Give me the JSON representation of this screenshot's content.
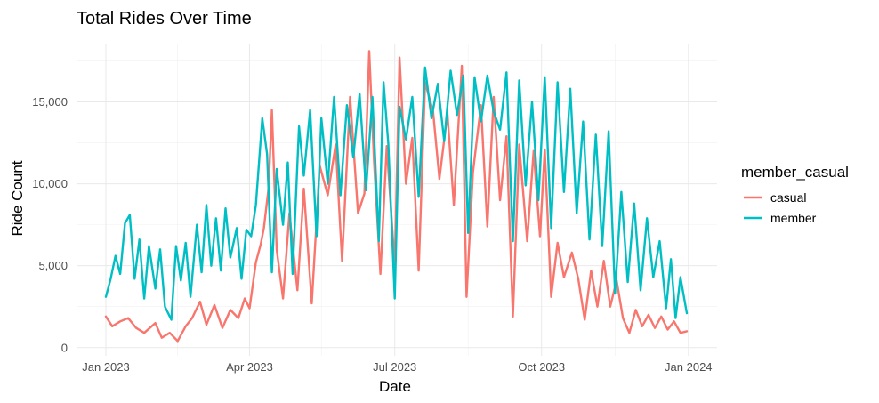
{
  "chart_data": {
    "type": "line",
    "title": "Total Rides Over Time",
    "xlabel": "Date",
    "ylabel": "Ride Count",
    "x_range": [
      "2023-01-01",
      "2023-12-31"
    ],
    "ylim": [
      -500,
      18500
    ],
    "grid": true,
    "x_ticks": [
      {
        "date": "2023-01-01",
        "label": "Jan 2023"
      },
      {
        "date": "2023-04-01",
        "label": "Apr 2023"
      },
      {
        "date": "2023-07-01",
        "label": "Jul 2023"
      },
      {
        "date": "2023-10-01",
        "label": "Oct 2023"
      },
      {
        "date": "2024-01-01",
        "label": "Jan 2024"
      }
    ],
    "y_ticks": [
      {
        "value": 0,
        "label": "0"
      },
      {
        "value": 5000,
        "label": "5,000"
      },
      {
        "value": 10000,
        "label": "10,000"
      },
      {
        "value": 15000,
        "label": "15,000"
      }
    ],
    "legend": {
      "title": "member_casual",
      "placement": "right"
    },
    "series": [
      {
        "name": "casual",
        "color": "#F8766D",
        "points": [
          [
            "2023-01-01",
            1900
          ],
          [
            "2023-01-05",
            1300
          ],
          [
            "2023-01-10",
            1600
          ],
          [
            "2023-01-15",
            1800
          ],
          [
            "2023-01-20",
            1200
          ],
          [
            "2023-01-25",
            900
          ],
          [
            "2023-02-01",
            1500
          ],
          [
            "2023-02-05",
            600
          ],
          [
            "2023-02-10",
            900
          ],
          [
            "2023-02-15",
            400
          ],
          [
            "2023-02-20",
            1300
          ],
          [
            "2023-02-24",
            1800
          ],
          [
            "2023-03-01",
            2800
          ],
          [
            "2023-03-05",
            1400
          ],
          [
            "2023-03-10",
            2600
          ],
          [
            "2023-03-15",
            1200
          ],
          [
            "2023-03-20",
            2300
          ],
          [
            "2023-03-25",
            1800
          ],
          [
            "2023-03-29",
            3000
          ],
          [
            "2023-04-01",
            2400
          ],
          [
            "2023-04-05",
            5200
          ],
          [
            "2023-04-08",
            6300
          ],
          [
            "2023-04-10",
            7300
          ],
          [
            "2023-04-13",
            9800
          ],
          [
            "2023-04-15",
            14500
          ],
          [
            "2023-04-18",
            6000
          ],
          [
            "2023-04-22",
            3000
          ],
          [
            "2023-04-26",
            8200
          ],
          [
            "2023-05-01",
            3500
          ],
          [
            "2023-05-05",
            9700
          ],
          [
            "2023-05-10",
            2700
          ],
          [
            "2023-05-15",
            11100
          ],
          [
            "2023-05-20",
            9300
          ],
          [
            "2023-05-25",
            12400
          ],
          [
            "2023-05-29",
            5300
          ],
          [
            "2023-06-03",
            15300
          ],
          [
            "2023-06-08",
            8200
          ],
          [
            "2023-06-12",
            9400
          ],
          [
            "2023-06-15",
            18100
          ],
          [
            "2023-06-18",
            11400
          ],
          [
            "2023-06-22",
            4500
          ],
          [
            "2023-06-26",
            12300
          ],
          [
            "2023-07-01",
            5000
          ],
          [
            "2023-07-04",
            17700
          ],
          [
            "2023-07-08",
            10000
          ],
          [
            "2023-07-12",
            12800
          ],
          [
            "2023-07-16",
            4700
          ],
          [
            "2023-07-20",
            16200
          ],
          [
            "2023-07-25",
            14400
          ],
          [
            "2023-07-29",
            10300
          ],
          [
            "2023-08-03",
            14300
          ],
          [
            "2023-08-07",
            8700
          ],
          [
            "2023-08-12",
            17200
          ],
          [
            "2023-08-15",
            3100
          ],
          [
            "2023-08-19",
            10700
          ],
          [
            "2023-08-24",
            14800
          ],
          [
            "2023-08-28",
            7400
          ],
          [
            "2023-09-01",
            15300
          ],
          [
            "2023-09-05",
            9000
          ],
          [
            "2023-09-09",
            12900
          ],
          [
            "2023-09-13",
            1900
          ],
          [
            "2023-09-17",
            12400
          ],
          [
            "2023-09-22",
            6500
          ],
          [
            "2023-09-26",
            12000
          ],
          [
            "2023-09-30",
            6800
          ],
          [
            "2023-10-03",
            12100
          ],
          [
            "2023-10-07",
            3100
          ],
          [
            "2023-10-11",
            6400
          ],
          [
            "2023-10-15",
            4300
          ],
          [
            "2023-10-20",
            5800
          ],
          [
            "2023-10-24",
            4200
          ],
          [
            "2023-10-28",
            1700
          ],
          [
            "2023-11-01",
            4700
          ],
          [
            "2023-11-05",
            2500
          ],
          [
            "2023-11-09",
            5300
          ],
          [
            "2023-11-13",
            2500
          ],
          [
            "2023-11-17",
            4100
          ],
          [
            "2023-11-21",
            1800
          ],
          [
            "2023-11-25",
            900
          ],
          [
            "2023-11-29",
            2300
          ],
          [
            "2023-12-03",
            1300
          ],
          [
            "2023-12-07",
            2000
          ],
          [
            "2023-12-11",
            1200
          ],
          [
            "2023-12-15",
            1900
          ],
          [
            "2023-12-19",
            1100
          ],
          [
            "2023-12-23",
            1600
          ],
          [
            "2023-12-27",
            900
          ],
          [
            "2023-12-31",
            1000
          ]
        ]
      },
      {
        "name": "member",
        "color": "#00BFC4",
        "points": [
          [
            "2023-01-01",
            3100
          ],
          [
            "2023-01-04",
            4200
          ],
          [
            "2023-01-07",
            5600
          ],
          [
            "2023-01-10",
            4500
          ],
          [
            "2023-01-13",
            7600
          ],
          [
            "2023-01-16",
            8100
          ],
          [
            "2023-01-19",
            4200
          ],
          [
            "2023-01-22",
            6600
          ],
          [
            "2023-01-25",
            3000
          ],
          [
            "2023-01-28",
            6200
          ],
          [
            "2023-02-01",
            3600
          ],
          [
            "2023-02-04",
            6000
          ],
          [
            "2023-02-07",
            2500
          ],
          [
            "2023-02-11",
            1700
          ],
          [
            "2023-02-14",
            6200
          ],
          [
            "2023-02-17",
            4100
          ],
          [
            "2023-02-20",
            6400
          ],
          [
            "2023-02-23",
            3100
          ],
          [
            "2023-02-27",
            7500
          ],
          [
            "2023-03-02",
            4600
          ],
          [
            "2023-03-05",
            8700
          ],
          [
            "2023-03-08",
            5000
          ],
          [
            "2023-03-11",
            7900
          ],
          [
            "2023-03-14",
            4700
          ],
          [
            "2023-03-17",
            8500
          ],
          [
            "2023-03-20",
            5500
          ],
          [
            "2023-03-24",
            7300
          ],
          [
            "2023-03-27",
            4200
          ],
          [
            "2023-03-30",
            7200
          ],
          [
            "2023-04-02",
            6800
          ],
          [
            "2023-04-05",
            8700
          ],
          [
            "2023-04-09",
            14000
          ],
          [
            "2023-04-12",
            11800
          ],
          [
            "2023-04-15",
            4600
          ],
          [
            "2023-04-18",
            10900
          ],
          [
            "2023-04-22",
            7500
          ],
          [
            "2023-04-25",
            11300
          ],
          [
            "2023-04-28",
            4500
          ],
          [
            "2023-05-02",
            13500
          ],
          [
            "2023-05-05",
            10500
          ],
          [
            "2023-05-09",
            14500
          ],
          [
            "2023-05-13",
            6800
          ],
          [
            "2023-05-16",
            14000
          ],
          [
            "2023-05-20",
            10000
          ],
          [
            "2023-05-24",
            15300
          ],
          [
            "2023-05-28",
            9300
          ],
          [
            "2023-06-01",
            14800
          ],
          [
            "2023-06-05",
            11600
          ],
          [
            "2023-06-09",
            15500
          ],
          [
            "2023-06-13",
            9600
          ],
          [
            "2023-06-17",
            15300
          ],
          [
            "2023-06-21",
            6500
          ],
          [
            "2023-06-24",
            16200
          ],
          [
            "2023-06-27",
            12400
          ],
          [
            "2023-07-01",
            3000
          ],
          [
            "2023-07-04",
            14700
          ],
          [
            "2023-07-08",
            12700
          ],
          [
            "2023-07-12",
            15300
          ],
          [
            "2023-07-16",
            9200
          ],
          [
            "2023-07-20",
            17100
          ],
          [
            "2023-07-24",
            14000
          ],
          [
            "2023-07-28",
            16100
          ],
          [
            "2023-08-01",
            12600
          ],
          [
            "2023-08-05",
            16900
          ],
          [
            "2023-08-09",
            14200
          ],
          [
            "2023-08-13",
            16600
          ],
          [
            "2023-08-16",
            7000
          ],
          [
            "2023-08-20",
            16500
          ],
          [
            "2023-08-24",
            13800
          ],
          [
            "2023-08-28",
            16600
          ],
          [
            "2023-09-01",
            14400
          ],
          [
            "2023-09-05",
            13300
          ],
          [
            "2023-09-09",
            16800
          ],
          [
            "2023-09-13",
            6500
          ],
          [
            "2023-09-17",
            16300
          ],
          [
            "2023-09-21",
            9900
          ],
          [
            "2023-09-25",
            15000
          ],
          [
            "2023-09-29",
            9000
          ],
          [
            "2023-10-03",
            16500
          ],
          [
            "2023-10-07",
            7300
          ],
          [
            "2023-10-11",
            16200
          ],
          [
            "2023-10-15",
            9500
          ],
          [
            "2023-10-19",
            15800
          ],
          [
            "2023-10-23",
            8200
          ],
          [
            "2023-10-27",
            13800
          ],
          [
            "2023-10-31",
            6600
          ],
          [
            "2023-11-04",
            13000
          ],
          [
            "2023-11-08",
            6200
          ],
          [
            "2023-11-12",
            13200
          ],
          [
            "2023-11-16",
            3300
          ],
          [
            "2023-11-20",
            9500
          ],
          [
            "2023-11-24",
            4000
          ],
          [
            "2023-11-28",
            8800
          ],
          [
            "2023-12-02",
            3500
          ],
          [
            "2023-12-06",
            7900
          ],
          [
            "2023-12-10",
            4300
          ],
          [
            "2023-12-14",
            6500
          ],
          [
            "2023-12-18",
            2400
          ],
          [
            "2023-12-21",
            5400
          ],
          [
            "2023-12-24",
            1800
          ],
          [
            "2023-12-27",
            4300
          ],
          [
            "2023-12-31",
            2100
          ]
        ]
      }
    ]
  }
}
